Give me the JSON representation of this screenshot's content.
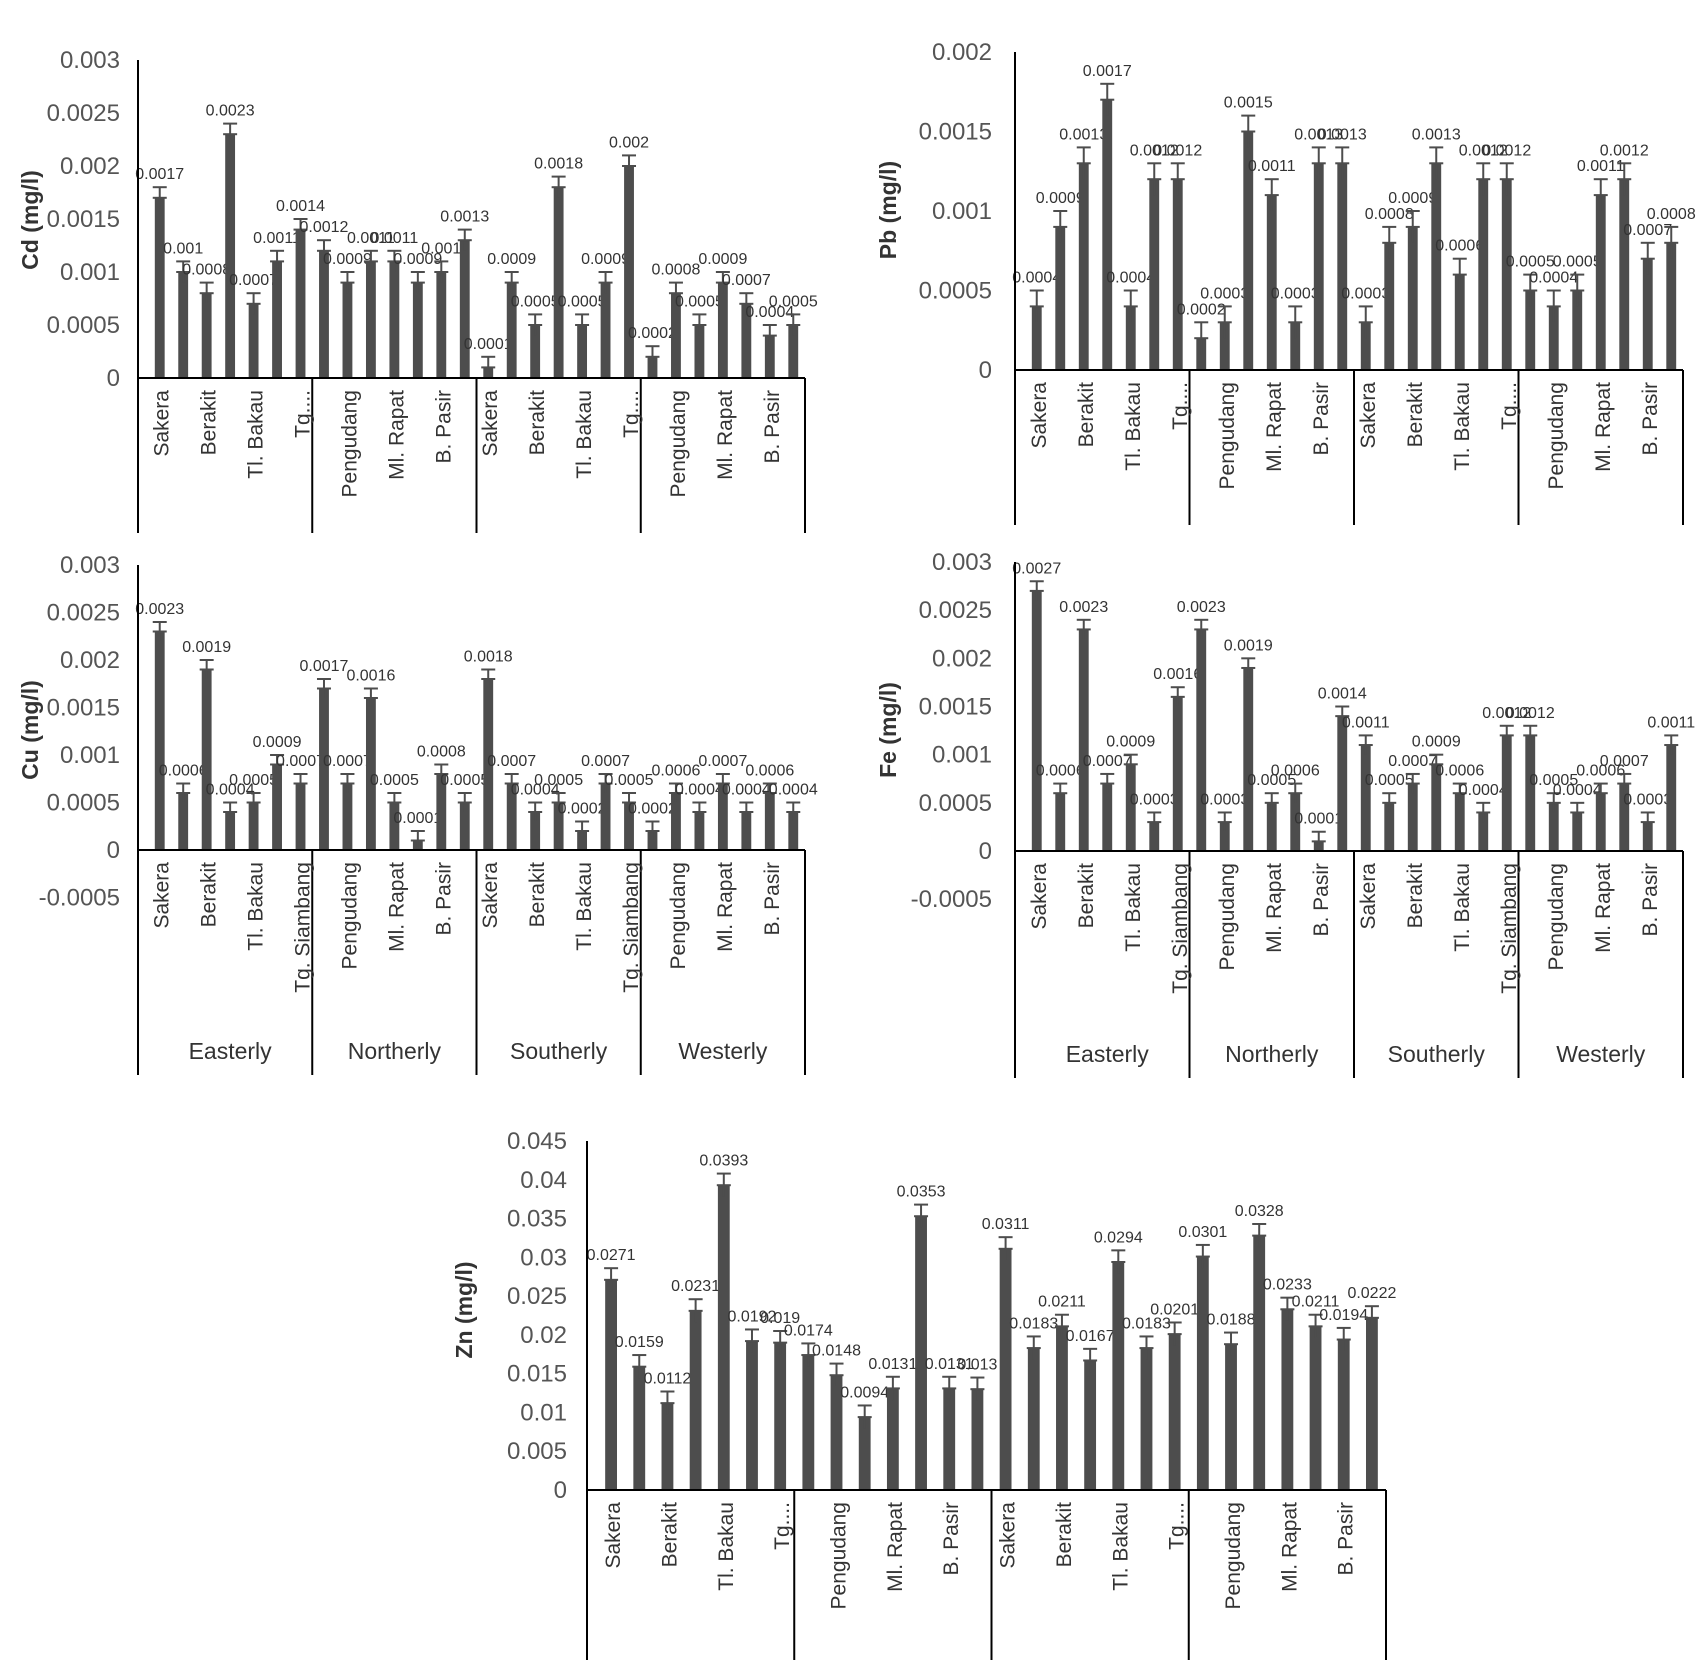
{
  "chart_data": [
    {
      "type": "bar",
      "ylabel": "Cd (mg/l)",
      "yticks": [
        "0.003",
        "0.0025",
        "0.002",
        "0.0015",
        "0.001",
        "0.0005",
        "0"
      ],
      "ylim": [
        0,
        0.003
      ],
      "categories": [
        "Sakera",
        "Berakit",
        "Tl. Bakau",
        "Tg....",
        "Pengudang",
        "Ml. Rapat",
        "B. Pasir",
        "Sakera",
        "Berakit",
        "Tl. Bakau",
        "Tg....",
        "Pengudang",
        "Ml. Rapat",
        "B. Pasir"
      ],
      "groups": [],
      "values": [
        0.0017,
        0.001,
        0.0008,
        0.0023,
        0.0007,
        0.0011,
        0.0014,
        0.0012,
        0.0009,
        0.0011,
        0.0011,
        0.0009,
        0.001,
        0.0013,
        0.0001,
        0.0009,
        0.0005,
        0.0018,
        0.0005,
        0.0009,
        0.002,
        0.0002,
        0.0008,
        0.0005,
        0.0009,
        0.0007,
        0.0004,
        0.0005
      ],
      "labels": [
        "0.0017",
        "0.001",
        "0.0008",
        "0.0023",
        "0.0007",
        "0.0011",
        "0.0014",
        "0.0012",
        "0.0009",
        "0.0011",
        "0.0011",
        "0.0009",
        "0.001",
        "0.0013",
        "0.0001",
        "0.0009",
        "0.0005",
        "0.0018",
        "0.0005",
        "0.0009",
        "0.002",
        "0.0002",
        "0.0008",
        "0.0005",
        "0.0009",
        "0.0007",
        "0.0004",
        "0.0005"
      ],
      "errors": [
        0.0001,
        0.0001,
        0.0001,
        0.0001,
        0.0001,
        0.0001,
        0.0001,
        0.0001,
        0.0001,
        0.0001,
        0.0001,
        0.0001,
        0.0001,
        0.0001,
        0.0001,
        0.0001,
        0.0001,
        0.0001,
        0.0001,
        0.0001,
        0.0001,
        0.0001,
        0.0001,
        0.0001,
        0.0001,
        0.0001,
        0.0001,
        0.0001
      ]
    },
    {
      "type": "bar",
      "ylabel": "Pb (mg/l)",
      "yticks": [
        "0.002",
        "0.0015",
        "0.001",
        "0.0005",
        "0"
      ],
      "ylim": [
        0,
        0.002
      ],
      "categories": [
        "Sakera",
        "Berakit",
        "Tl. Bakau",
        "Tg....",
        "Pengudang",
        "Ml. Rapat",
        "B. Pasir",
        "Sakera",
        "Berakit",
        "Tl. Bakau",
        "Tg....",
        "Pengudang",
        "Ml. Rapat",
        "B. Pasir"
      ],
      "groups": [],
      "values": [
        0.0004,
        0.0009,
        0.0013,
        0.0017,
        0.0004,
        0.0012,
        0.0012,
        0.0002,
        0.0003,
        0.0015,
        0.0011,
        0.0003,
        0.0013,
        0.0013,
        0.0003,
        0.0008,
        0.0009,
        0.0013,
        0.0006,
        0.0012,
        0.0012,
        0.0005,
        0.0004,
        0.0005,
        0.0011,
        0.0012,
        0.0007,
        0.0008
      ],
      "labels": [
        "0.0004",
        "0.0009",
        "0.0013",
        "0.0017",
        "0.0004",
        "0.0012",
        "0.0012",
        "0.0002",
        "0.0003",
        "0.0015",
        "0.0011",
        "0.0003",
        "0.0013",
        "0.0013",
        "0.0003",
        "0.0008",
        "0.0009",
        "0.0013",
        "0.0006",
        "0.0012",
        "0.0012",
        "0.0005",
        "0.0004",
        "0.0005",
        "0.0011",
        "0.0012",
        "0.0007",
        "0.0008"
      ],
      "errors": [
        0.0001,
        0.0001,
        0.0001,
        0.0001,
        0.0001,
        0.0001,
        0.0001,
        0.0001,
        0.0001,
        0.0001,
        0.0001,
        0.0001,
        0.0001,
        0.0001,
        0.0001,
        0.0001,
        0.0001,
        0.0001,
        0.0001,
        0.0001,
        0.0001,
        0.0001,
        0.0001,
        0.0001,
        0.0001,
        0.0001,
        0.0001,
        0.0001
      ]
    },
    {
      "type": "bar",
      "ylabel": "Cu (mg/l)",
      "yticks": [
        "0.003",
        "0.0025",
        "0.002",
        "0.0015",
        "0.001",
        "0.0005",
        "0",
        "-0.0005"
      ],
      "ylim": [
        -0.0005,
        0.003
      ],
      "categories": [
        "Sakera",
        "Berakit",
        "Tl. Bakau",
        "Tg. Siambang",
        "Pengudang",
        "Ml. Rapat",
        "B. Pasir",
        "Sakera",
        "Berakit",
        "Tl. Bakau",
        "Tg. Siambang",
        "Pengudang",
        "Ml. Rapat",
        "B. Pasir"
      ],
      "groups": [
        "Easterly",
        "Northerly",
        "Southerly",
        "Westerly"
      ],
      "values": [
        0.0023,
        0.0006,
        0.0019,
        0.0004,
        0.0005,
        0.0009,
        0.0007,
        0.0017,
        0.0007,
        0.0016,
        0.0005,
        0.0001,
        0.0008,
        0.0005,
        0.0018,
        0.0007,
        0.0004,
        0.0005,
        0.0002,
        0.0007,
        0.0005,
        0.0002,
        0.0006,
        0.0004,
        0.0007,
        0.0004,
        0.0006,
        0.0004
      ],
      "labels": [
        "0.0023",
        "0.0006",
        "0.0019",
        "0.0004",
        "0.0005",
        "0.0009",
        "0.0007",
        "0.0017",
        "0.0007",
        "0.0016",
        "0.0005",
        "0.0001",
        "0.0008",
        "0.0005",
        "0.0018",
        "0.0007",
        "0.0004",
        "0.0005",
        "0.0002",
        "0.0007",
        "0.0005",
        "0.0002",
        "0.0006",
        "0.0004",
        "0.0007",
        "0.0004",
        "0.0006",
        "0.0004"
      ],
      "errors": [
        0.0001,
        0.0001,
        0.0001,
        0.0001,
        0.0001,
        0.0001,
        0.0001,
        0.0001,
        0.0001,
        0.0001,
        0.0001,
        0.0001,
        0.0001,
        0.0001,
        0.0001,
        0.0001,
        0.0001,
        0.0001,
        0.0001,
        0.0001,
        0.0001,
        0.0001,
        0.0001,
        0.0001,
        0.0001,
        0.0001,
        0.0001,
        0.0001
      ]
    },
    {
      "type": "bar",
      "ylabel": "Fe (mg/l)",
      "yticks": [
        "0.003",
        "0.0025",
        "0.002",
        "0.0015",
        "0.001",
        "0.0005",
        "0",
        "-0.0005"
      ],
      "ylim": [
        -0.0005,
        0.003
      ],
      "categories": [
        "Sakera",
        "Berakit",
        "Tl. Bakau",
        "Tg. Siambang",
        "Pengudang",
        "Ml. Rapat",
        "B. Pasir",
        "Sakera",
        "Berakit",
        "Tl. Bakau",
        "Tg. Siambang",
        "Pengudang",
        "Ml. Rapat",
        "B. Pasir"
      ],
      "groups": [
        "Easterly",
        "Northerly",
        "Southerly",
        "Westerly"
      ],
      "values": [
        0.0027,
        0.0006,
        0.0023,
        0.0007,
        0.0009,
        0.0003,
        0.0016,
        0.0023,
        0.0003,
        0.0019,
        0.0005,
        0.0006,
        0.0001,
        0.0014,
        0.0011,
        0.0005,
        0.0007,
        0.0009,
        0.0006,
        0.0004,
        0.0012,
        0.0012,
        0.0005,
        0.0004,
        0.0006,
        0.0007,
        0.0003,
        0.0011
      ],
      "labels": [
        "0.0027",
        "0.0006",
        "0.0023",
        "0.0007",
        "0.0009",
        "0.0003",
        "0.0016",
        "0.0023",
        "0.0003",
        "0.0019",
        "0.0005",
        "0.0006",
        "0.0001",
        "0.0014",
        "0.0011",
        "0.0005",
        "0.0007",
        "0.0009",
        "0.0006",
        "0.0004",
        "0.0012",
        "0.0012",
        "0.0005",
        "0.0004",
        "0.0006",
        "0.0007",
        "0.0003",
        "0.0011"
      ],
      "errors": [
        0.0001,
        0.0001,
        0.0001,
        0.0001,
        0.0001,
        0.0001,
        0.0001,
        0.0001,
        0.0001,
        0.0001,
        0.0001,
        0.0001,
        0.0001,
        0.0001,
        0.0001,
        0.0001,
        0.0001,
        0.0001,
        0.0001,
        0.0001,
        0.0001,
        0.0001,
        0.0001,
        0.0001,
        0.0001,
        0.0001,
        0.0001,
        0.0001
      ]
    },
    {
      "type": "bar",
      "ylabel": "Zn (mg/l)",
      "yticks": [
        "0.045",
        "0.04",
        "0.035",
        "0.03",
        "0.025",
        "0.02",
        "0.015",
        "0.01",
        "0.005",
        "0"
      ],
      "ylim": [
        0,
        0.045
      ],
      "categories": [
        "Sakera",
        "Berakit",
        "Tl. Bakau",
        "Tg....",
        "Pengudang",
        "Ml. Rapat",
        "B. Pasir",
        "Sakera",
        "Berakit",
        "Tl. Bakau",
        "Tg....",
        "Pengudang",
        "Ml. Rapat",
        "B. Pasir"
      ],
      "groups": [],
      "values": [
        0.0271,
        0.0159,
        0.0112,
        0.0231,
        0.0393,
        0.0192,
        0.019,
        0.0174,
        0.0148,
        0.0094,
        0.0131,
        0.0353,
        0.0131,
        0.013,
        0.0311,
        0.0183,
        0.0211,
        0.0167,
        0.0294,
        0.0183,
        0.0201,
        0.0301,
        0.0188,
        0.0328,
        0.0233,
        0.0211,
        0.0194,
        0.0222
      ],
      "labels": [
        "0.0271",
        "0.0159",
        "0.0112",
        "0.0231",
        "0.0393",
        "0.0192",
        "0.019",
        "0.0174",
        "0.0148",
        "0.0094",
        "0.0131",
        "0.0353",
        "0.0131",
        "0.013",
        "0.0311",
        "0.0183",
        "0.0211",
        "0.0167",
        "0.0294",
        "0.0183",
        "0.0201",
        "0.0301",
        "0.0188",
        "0.0328",
        "0.0233",
        "0.0211",
        "0.0194",
        "0.0222"
      ],
      "errors": [
        0.0015,
        0.0015,
        0.0015,
        0.0015,
        0.0015,
        0.0015,
        0.0015,
        0.0015,
        0.0015,
        0.0015,
        0.0015,
        0.0015,
        0.0015,
        0.0015,
        0.0015,
        0.0015,
        0.0015,
        0.0015,
        0.0015,
        0.0015,
        0.0015,
        0.0015,
        0.0015,
        0.0015,
        0.0015,
        0.0015,
        0.0015,
        0.0015
      ]
    }
  ]
}
